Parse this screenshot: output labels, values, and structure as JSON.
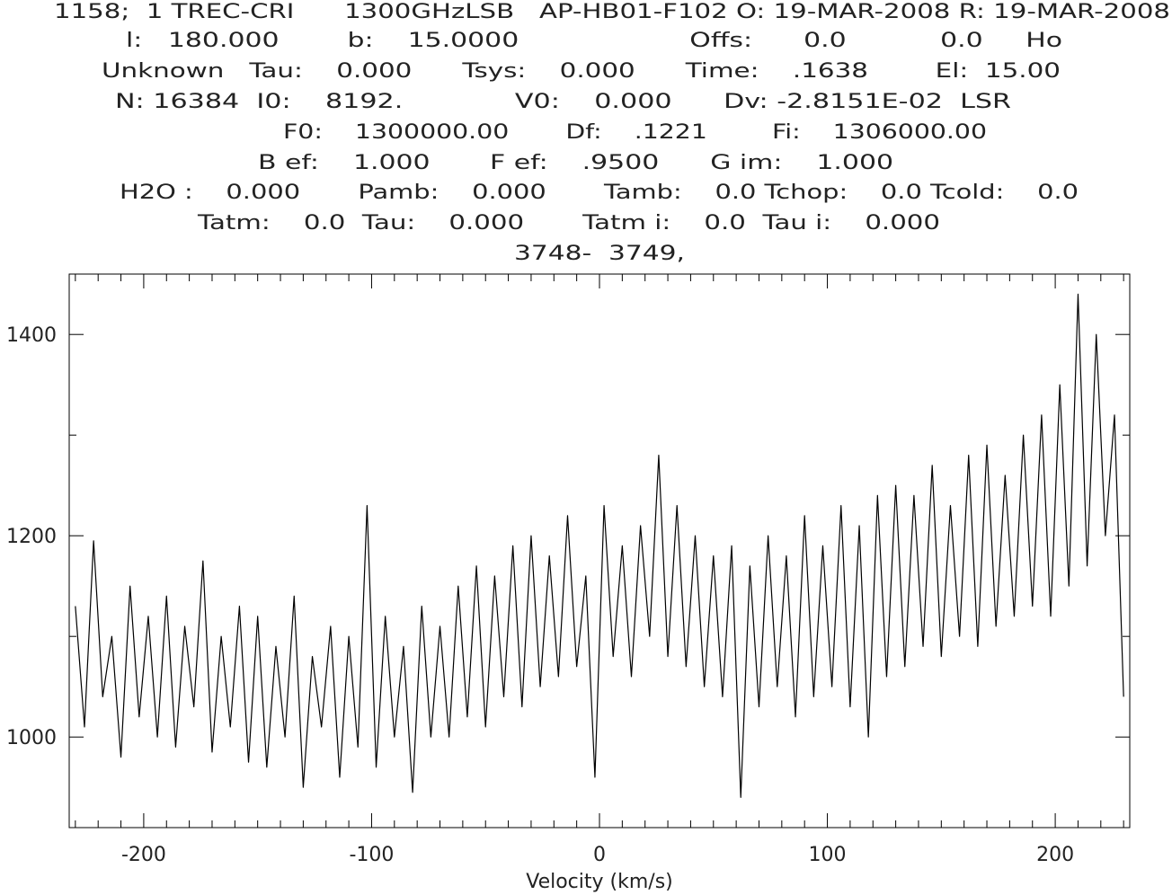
{
  "chart_data": {
    "type": "line",
    "annotations": [
      "1158;  1 TREC-CRI      1300GHzLSB   AP-HB01-F102 O: 19-MAR-2008 R: 19-MAR-2008",
      "l:   180.000        b:    15.0000                    Offs:      0.0           0.0     Ho",
      "Unknown   Tau:    0.000      Tsys:    0.000      Time:    .1638        El:  15.00",
      "N: 16384  I0:    8192.             V0:    0.000      Dv: -2.8151E-02  LSR",
      "F0:    1300000.00       Df:    .1221        Fi:    1306000.00",
      "B ef:    1.000       F ef:    .9500      G im:    1.000",
      "H2O :    0.000       Pamb:    0.000       Tamb:    0.0 Tchop:    0.0 Tcold:    0.0",
      "Tatm:    0.0  Tau:    0.000       Tatm i:    0.0  Tau i:    0.000",
      "3748-  3749,"
    ],
    "x_label": "Velocity (km/s)",
    "x": [
      -230,
      -226,
      -222,
      -218,
      -214,
      -210,
      -206,
      -202,
      -198,
      -194,
      -190,
      -186,
      -182,
      -178,
      -174,
      -170,
      -166,
      -162,
      -158,
      -154,
      -150,
      -146,
      -142,
      -138,
      -134,
      -130,
      -126,
      -122,
      -118,
      -114,
      -110,
      -106,
      -102,
      -98,
      -94,
      -90,
      -86,
      -82,
      -78,
      -74,
      -70,
      -66,
      -62,
      -58,
      -54,
      -50,
      -46,
      -42,
      -38,
      -34,
      -30,
      -26,
      -22,
      -18,
      -14,
      -10,
      -6,
      -2,
      2,
      6,
      10,
      14,
      18,
      22,
      26,
      30,
      34,
      38,
      42,
      46,
      50,
      54,
      58,
      62,
      66,
      70,
      74,
      78,
      82,
      86,
      90,
      94,
      98,
      102,
      106,
      110,
      114,
      118,
      122,
      126,
      130,
      134,
      138,
      142,
      146,
      150,
      154,
      158,
      162,
      166,
      170,
      174,
      178,
      182,
      186,
      190,
      194,
      198,
      202,
      206,
      210,
      214,
      218,
      222,
      226,
      230
    ],
    "series": [
      {
        "color": "#000000",
        "values": [
          1130,
          1010,
          1195,
          1040,
          1100,
          980,
          1150,
          1020,
          1120,
          1000,
          1140,
          990,
          1110,
          1030,
          1175,
          985,
          1100,
          1010,
          1130,
          975,
          1120,
          970,
          1090,
          1000,
          1140,
          950,
          1080,
          1010,
          1110,
          960,
          1100,
          990,
          1230,
          970,
          1120,
          1000,
          1090,
          945,
          1130,
          1000,
          1110,
          1000,
          1150,
          1020,
          1170,
          1010,
          1160,
          1040,
          1190,
          1030,
          1200,
          1050,
          1180,
          1060,
          1220,
          1070,
          1160,
          960,
          1230,
          1080,
          1190,
          1060,
          1210,
          1100,
          1280,
          1080,
          1230,
          1070,
          1200,
          1050,
          1180,
          1040,
          1190,
          940,
          1170,
          1030,
          1200,
          1050,
          1180,
          1020,
          1220,
          1040,
          1190,
          1050,
          1230,
          1030,
          1210,
          1000,
          1240,
          1060,
          1250,
          1070,
          1240,
          1090,
          1270,
          1080,
          1230,
          1100,
          1280,
          1090,
          1290,
          1110,
          1260,
          1120,
          1300,
          1130,
          1320,
          1120,
          1350,
          1150,
          1440,
          1170,
          1400,
          1200,
          1320,
          1040
        ]
      }
    ],
    "xlim": [
      -232.7,
      232.7
    ],
    "ylim": [
      910,
      1460
    ],
    "xticks": [
      -200,
      -100,
      0,
      100,
      200
    ],
    "yticks": [
      1000,
      1200,
      1400
    ],
    "xminorticks": [
      -230,
      -220,
      -210,
      -190,
      -180,
      -170,
      -160,
      -150,
      -140,
      -130,
      -120,
      -110,
      -90,
      -80,
      -70,
      -60,
      -50,
      -40,
      -30,
      -20,
      -10,
      10,
      20,
      30,
      40,
      50,
      60,
      70,
      80,
      90,
      110,
      120,
      130,
      140,
      150,
      160,
      170,
      180,
      190,
      210,
      220,
      230
    ],
    "yminorticks": [
      1100,
      1300
    ]
  }
}
